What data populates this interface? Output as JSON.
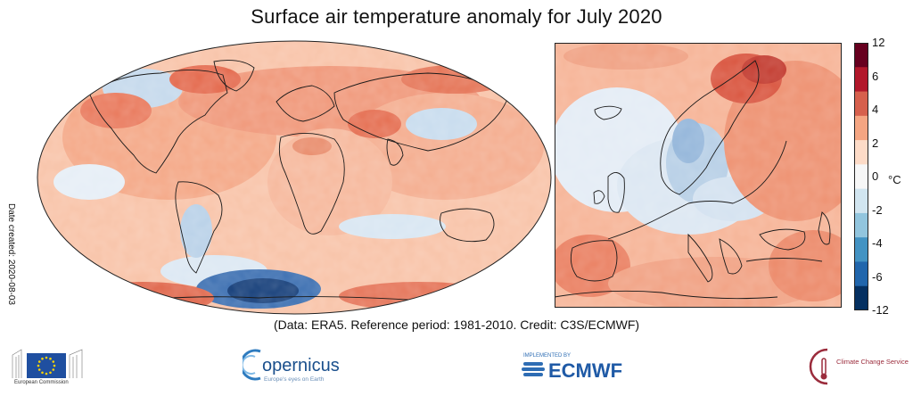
{
  "title": "Surface air temperature anomaly for July 2020",
  "date_created": "Date created: 2020-08-03",
  "footnote": "(Data: ERA5.  Reference period: 1981-2010.  Credit: C3S/ECMWF)",
  "colorbar": {
    "unit": "°C",
    "ticks": [
      "12",
      "6",
      "4",
      "2",
      "0",
      "-2",
      "-4",
      "-6",
      "-12"
    ],
    "colors": [
      "#67001f",
      "#b2182b",
      "#d6604d",
      "#f4a582",
      "#fddbc7",
      "#f7f7f7",
      "#d1e5f0",
      "#92c5de",
      "#4393c3",
      "#2166ac",
      "#053061"
    ]
  },
  "logos": {
    "ec_text": "European Commission",
    "copernicus": "opernicus",
    "copernicus_subtitle": "Europe's eyes on Earth",
    "ecmwf_small": "IMPLEMENTED BY",
    "ecmwf": "ECMWF",
    "c3s": "Climate Change Service"
  }
}
